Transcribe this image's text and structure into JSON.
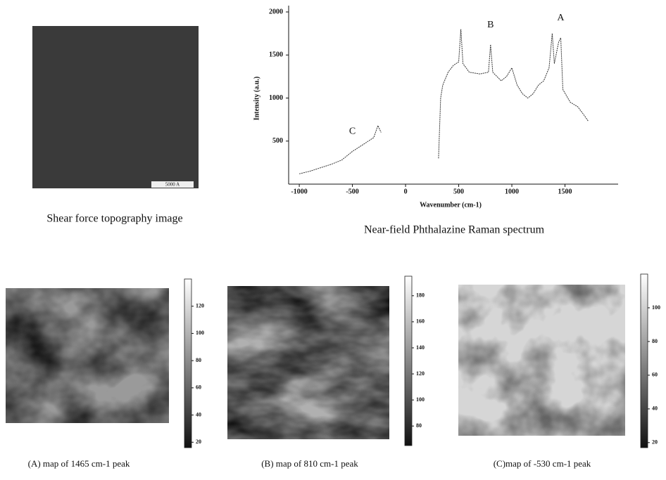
{
  "topography": {
    "caption": "Shear force topography image",
    "scale_label": "5000 A"
  },
  "chart_data": {
    "type": "line",
    "title": "Near-field Phthalazine Raman spectrum",
    "x_label": "Wavenumber (cm-1)",
    "y_label": "Intensity (a.u.)",
    "xlim": [
      -1100,
      2000
    ],
    "ylim": [
      0,
      2000
    ],
    "xticks": [
      -1000,
      -500,
      0,
      500,
      1000,
      1500
    ],
    "yticks": [
      500,
      1000,
      1500,
      2000
    ],
    "color": "#333333",
    "x": [
      -1000,
      -900,
      -800,
      -700,
      -600,
      -500,
      -400,
      -300,
      -260,
      -230,
      -200,
      310,
      330,
      350,
      400,
      450,
      500,
      520,
      540,
      600,
      700,
      780,
      800,
      820,
      900,
      950,
      1000,
      1050,
      1100,
      1150,
      1200,
      1250,
      1300,
      1350,
      1380,
      1400,
      1440,
      1460,
      1480,
      1550,
      1620,
      1680,
      1720
    ],
    "values": [
      120,
      150,
      190,
      230,
      280,
      380,
      460,
      540,
      680,
      600,
      null,
      300,
      1000,
      1150,
      1300,
      1380,
      1420,
      1800,
      1400,
      1300,
      1280,
      1300,
      1620,
      1300,
      1200,
      1250,
      1350,
      1150,
      1050,
      1000,
      1050,
      1150,
      1200,
      1350,
      1750,
      1400,
      1650,
      1700,
      1100,
      950,
      900,
      800,
      730
    ],
    "annotations": [
      {
        "text": "C",
        "x": -500
      },
      {
        "text": "B",
        "x": 800
      },
      {
        "text": "A",
        "x": 1460
      }
    ]
  },
  "maps": [
    {
      "caption": "(A) map of  1465 cm-1 peak",
      "clim": [
        16,
        140
      ],
      "ticks": [
        20,
        40,
        60,
        80,
        100,
        120
      ]
    },
    {
      "caption": "(B) map of 810 cm-1 peak",
      "clim": [
        65,
        195
      ],
      "ticks": [
        80,
        100,
        120,
        140,
        160,
        180
      ]
    },
    {
      "caption": "(C)map of -530 cm-1 peak",
      "clim": [
        17,
        120
      ],
      "ticks": [
        20,
        40,
        60,
        80,
        100
      ]
    }
  ]
}
